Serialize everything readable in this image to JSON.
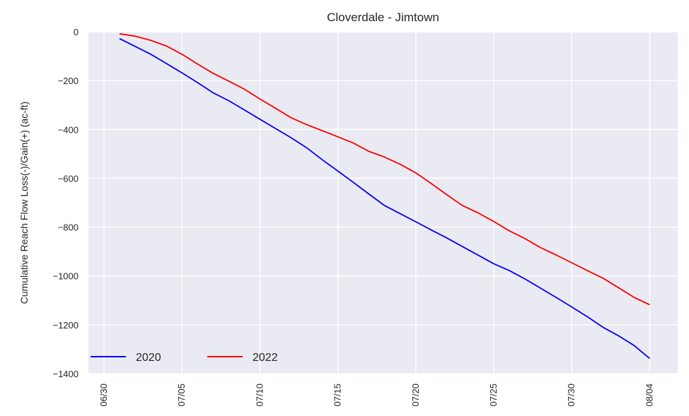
{
  "chart_data": {
    "type": "line",
    "title": "Cloverdale - Jimtown",
    "xlabel": "",
    "ylabel": "Cumulative Reach Flow Loss(-)/Gain(+) (ac-ft)",
    "ylim": [
      -1400,
      0
    ],
    "yticks": [
      0,
      -200,
      -400,
      -600,
      -800,
      -1000,
      -1200,
      -1400
    ],
    "ytick_labels": [
      "0",
      "−200",
      "−400",
      "−600",
      "−800",
      "−1000",
      "−1200",
      "−1400"
    ],
    "xticks": [
      "06/30",
      "07/05",
      "07/10",
      "07/15",
      "07/20",
      "07/25",
      "07/30",
      "08/04"
    ],
    "grid": true,
    "legend_position": "bottom-left",
    "x": [
      "07/01",
      "07/02",
      "07/03",
      "07/04",
      "07/05",
      "07/06",
      "07/07",
      "07/08",
      "07/09",
      "07/10",
      "07/11",
      "07/12",
      "07/13",
      "07/14",
      "07/15",
      "07/16",
      "07/17",
      "07/18",
      "07/19",
      "07/20",
      "07/21",
      "07/22",
      "07/23",
      "07/24",
      "07/25",
      "07/26",
      "07/27",
      "07/28",
      "07/29",
      "07/30",
      "07/31",
      "08/01",
      "08/02",
      "08/03",
      "08/04"
    ],
    "series": [
      {
        "name": "2020",
        "color": "#0000ff",
        "values": [
          -28,
          -60,
          -92,
          -130,
          -168,
          -208,
          -250,
          -282,
          -320,
          -358,
          -396,
          -434,
          -475,
          -524,
          -570,
          -617,
          -665,
          -712,
          -745,
          -778,
          -812,
          -845,
          -880,
          -915,
          -950,
          -978,
          -1012,
          -1050,
          -1088,
          -1127,
          -1167,
          -1210,
          -1245,
          -1285,
          -1338
        ]
      },
      {
        "name": "2022",
        "color": "#ff0000",
        "values": [
          -8,
          -18,
          -35,
          -58,
          -92,
          -132,
          -170,
          -202,
          -235,
          -275,
          -313,
          -352,
          -380,
          -405,
          -430,
          -456,
          -490,
          -513,
          -543,
          -578,
          -622,
          -668,
          -712,
          -742,
          -777,
          -815,
          -847,
          -884,
          -914,
          -946,
          -978,
          -1009,
          -1048,
          -1088,
          -1118
        ]
      }
    ]
  }
}
